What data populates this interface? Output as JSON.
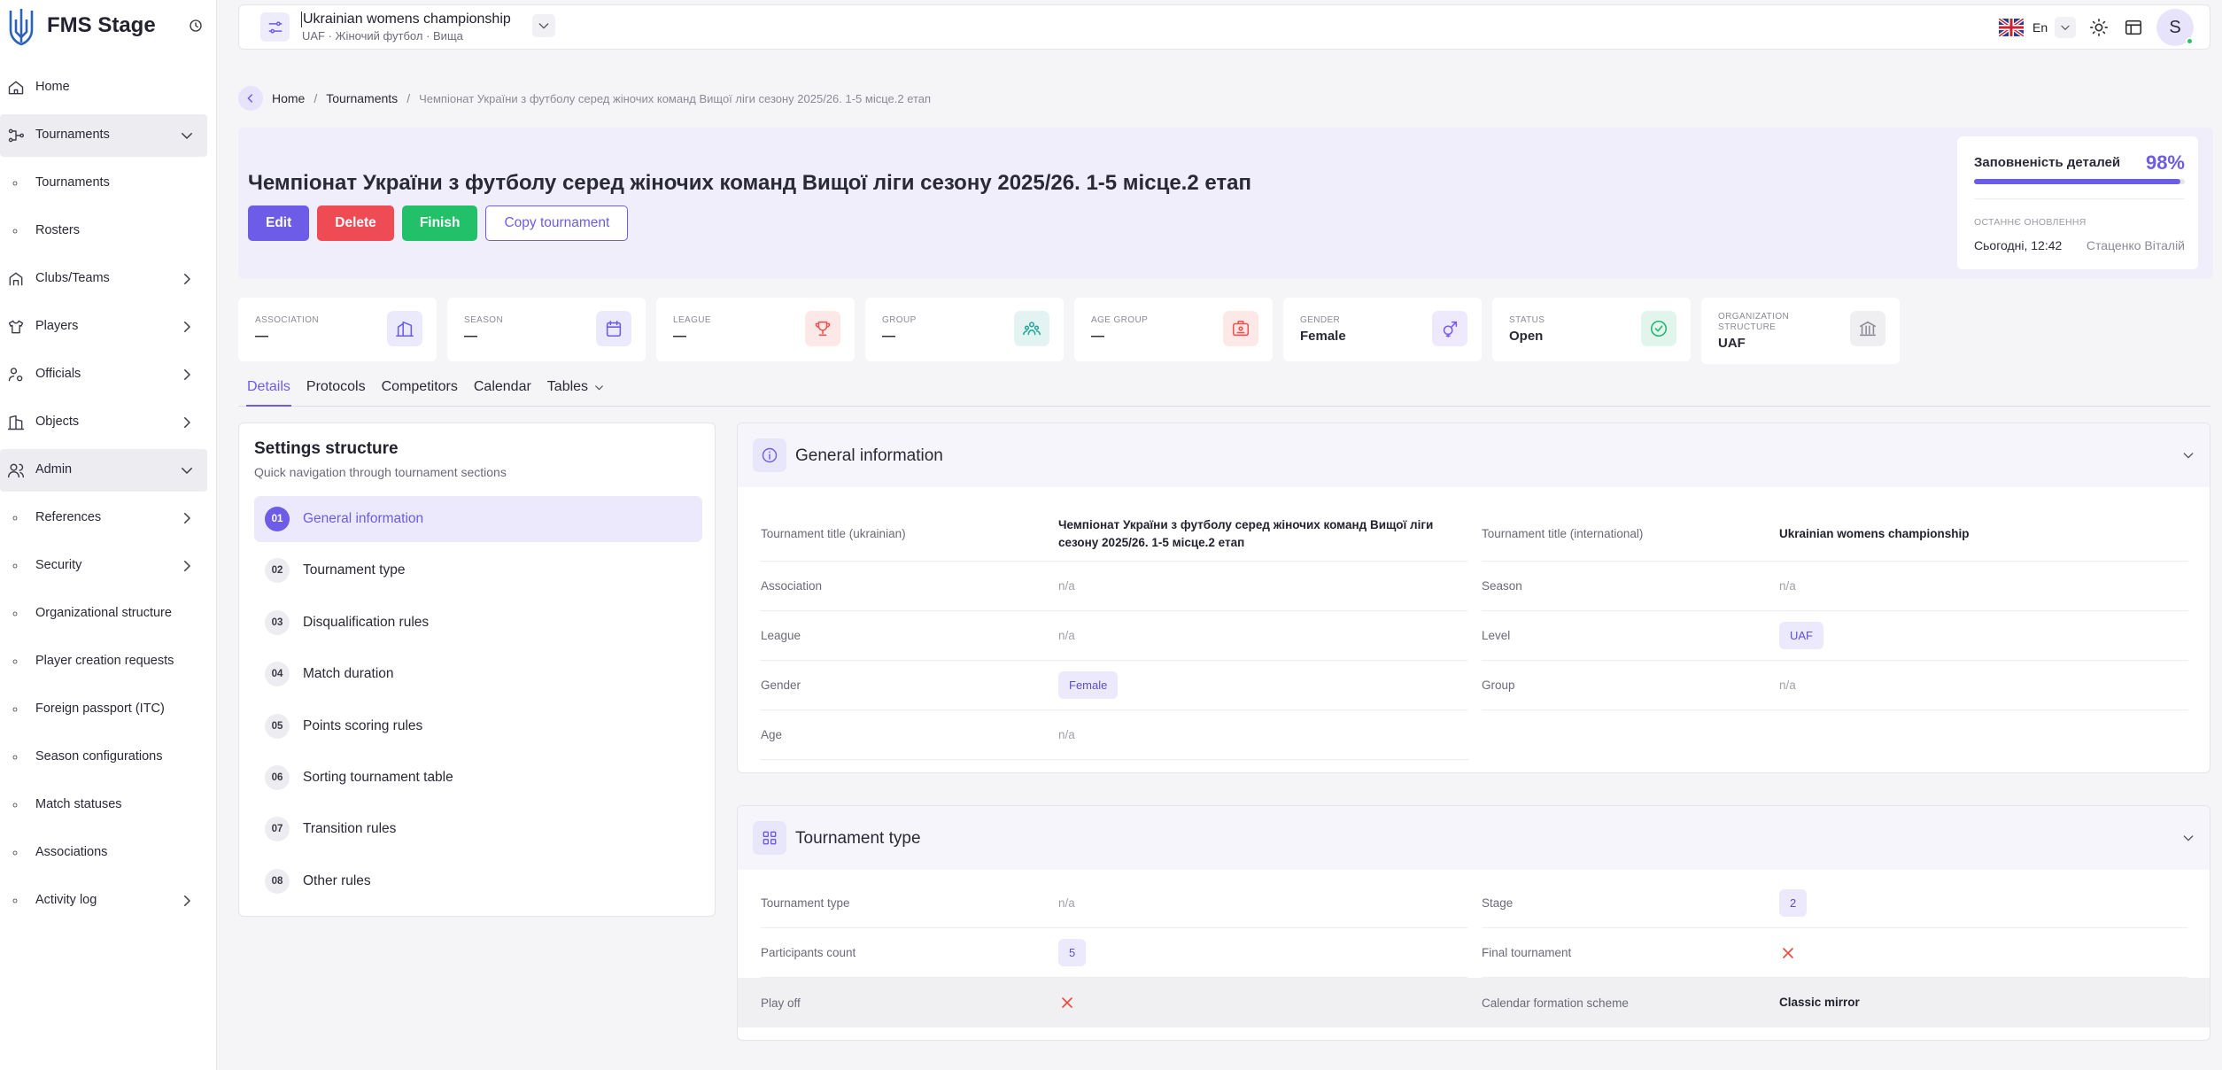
{
  "sidebar": {
    "brand": "FMS Stage",
    "items": [
      {
        "label": "Home",
        "icon": "home"
      },
      {
        "label": "Tournaments",
        "icon": "tournament",
        "active": true,
        "arrow": "down"
      },
      {
        "label": "Tournaments",
        "icon": "dot"
      },
      {
        "label": "Rosters",
        "icon": "dot"
      },
      {
        "label": "Clubs/Teams",
        "icon": "clubs",
        "arrow": "right"
      },
      {
        "label": "Players",
        "icon": "players",
        "arrow": "right"
      },
      {
        "label": "Officials",
        "icon": "officials",
        "arrow": "right"
      },
      {
        "label": "Objects",
        "icon": "objects",
        "arrow": "right"
      },
      {
        "label": "Admin",
        "icon": "admin",
        "active": true,
        "arrow": "down"
      },
      {
        "label": "References",
        "icon": "dot",
        "arrow": "right"
      },
      {
        "label": "Security",
        "icon": "dot",
        "arrow": "right"
      },
      {
        "label": "Organizational structure",
        "icon": "dot"
      },
      {
        "label": "Player creation requests",
        "icon": "dot"
      },
      {
        "label": "Foreign passport (ITC)",
        "icon": "dot"
      },
      {
        "label": "Season configurations",
        "icon": "dot"
      },
      {
        "label": "Match statuses",
        "icon": "dot"
      },
      {
        "label": "Associations",
        "icon": "dot"
      },
      {
        "label": "Activity log",
        "icon": "dot",
        "arrow": "right"
      }
    ]
  },
  "topbar": {
    "title": "Ukrainian womens championship",
    "subtitle": "UAF · Жіночий футбол · Вища",
    "language": "En",
    "avatar": "S"
  },
  "breadcrumb": [
    "Home",
    "Tournaments",
    "Чемпіонат України з футболу серед жіночих команд Вищої ліги сезону 2025/26. 1-5 місце.2 етап"
  ],
  "header": {
    "title": "Чемпіонат України з футболу серед жіночих команд Вищої ліги сезону 2025/26. 1-5 місце.2 етап",
    "buttons": [
      {
        "label": "Edit",
        "style": "primary"
      },
      {
        "label": "Delete",
        "style": "danger"
      },
      {
        "label": "Finish",
        "style": "success"
      },
      {
        "label": "Copy tournament",
        "style": "outline"
      }
    ],
    "progress": {
      "label": "Заповненість деталей",
      "value": 98,
      "value_label": "98%",
      "updated_label": "ОСТАННЄ ОНОВЛЕННЯ",
      "updated_time": "Сьогодні, 12:42",
      "updated_by": "Стаценко Віталій"
    }
  },
  "stats": [
    {
      "label": "ASSOCIATION",
      "value": "—",
      "icon": "building",
      "color": "#6c5ce7"
    },
    {
      "label": "SEASON",
      "value": "—",
      "icon": "calendar",
      "color": "#6c5ce7"
    },
    {
      "label": "LEAGUE",
      "value": "—",
      "icon": "trophy",
      "color": "#ef5350"
    },
    {
      "label": "GROUP",
      "value": "—",
      "icon": "group",
      "color": "#26a69a"
    },
    {
      "label": "AGE GROUP",
      "value": "—",
      "icon": "badge",
      "color": "#ef5350"
    },
    {
      "label": "GENDER",
      "value": "Female",
      "icon": "gender",
      "color": "#7c5ce7"
    },
    {
      "label": "STATUS",
      "value": "Open",
      "icon": "check",
      "color": "#22b573"
    },
    {
      "label": "ORGANIZATION STRUCTURE",
      "value": "UAF",
      "icon": "bank",
      "color": "#8a8a96"
    }
  ],
  "tabs": [
    "Details",
    "Protocols",
    "Competitors",
    "Calendar",
    "Tables"
  ],
  "settings": {
    "title": "Settings structure",
    "subtitle": "Quick navigation through tournament sections",
    "items": [
      {
        "number": "01",
        "label": "General information",
        "active": true
      },
      {
        "number": "02",
        "label": "Tournament type"
      },
      {
        "number": "03",
        "label": "Disqualification rules"
      },
      {
        "number": "04",
        "label": "Match duration"
      },
      {
        "number": "05",
        "label": "Points scoring rules"
      },
      {
        "number": "06",
        "label": "Sorting tournament table"
      },
      {
        "number": "07",
        "label": "Transition rules"
      },
      {
        "number": "08",
        "label": "Other rules"
      }
    ]
  },
  "sections": [
    {
      "title": "General information",
      "icon": "info",
      "rows": [
        {
          "cells": [
            {
              "label": "Tournament title (ukrainian)",
              "value": "Чемпіонат України з футболу серед жіночих команд Вищої ліги сезону 2025/26. 1-5 місце.2 етап",
              "style": "bold"
            },
            {
              "label": "Tournament title (international)",
              "value": "Ukrainian womens championship",
              "style": "bold"
            }
          ]
        },
        {
          "cells": [
            {
              "label": "Association",
              "value": "n/a",
              "style": "muted"
            },
            {
              "label": "Season",
              "value": "n/a",
              "style": "muted"
            }
          ]
        },
        {
          "cells": [
            {
              "label": "League",
              "value": "n/a",
              "style": "muted"
            },
            {
              "label": "Level",
              "value": "UAF",
              "style": "badge"
            }
          ]
        },
        {
          "cells": [
            {
              "label": "Gender",
              "value": "Female",
              "style": "badge"
            },
            {
              "label": "Group",
              "value": "n/a",
              "style": "muted"
            }
          ]
        },
        {
          "cells": [
            {
              "label": "Age",
              "value": "n/a",
              "style": "muted"
            }
          ]
        }
      ]
    },
    {
      "title": "Tournament type",
      "icon": "grid",
      "rows": [
        {
          "cells": [
            {
              "label": "Tournament type",
              "value": "n/a",
              "style": "muted"
            },
            {
              "label": "Stage",
              "value": 2,
              "style": "badge"
            }
          ]
        },
        {
          "cells": [
            {
              "label": "Participants count",
              "value": 5,
              "style": "badge"
            },
            {
              "label": "Final tournament",
              "value": false,
              "style": "cross"
            }
          ]
        },
        {
          "cells": [
            {
              "label": "Play off",
              "value": false,
              "style": "cross"
            },
            {
              "label": "Calendar formation scheme",
              "value": "Classic mirror",
              "style": "bold"
            }
          ],
          "highlighted": true
        }
      ]
    }
  ]
}
